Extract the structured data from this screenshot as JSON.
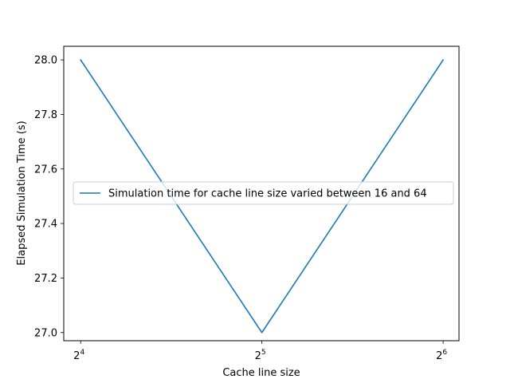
{
  "chart_data": {
    "type": "line",
    "xscale": "log2",
    "x": [
      16,
      32,
      64
    ],
    "x_tick_labels": [
      {
        "base": "2",
        "exp": "4",
        "value": 16
      },
      {
        "base": "2",
        "exp": "5",
        "value": 32
      },
      {
        "base": "2",
        "exp": "6",
        "value": 64
      }
    ],
    "xlim": [
      15,
      68
    ],
    "ylim": [
      26.97,
      28.05
    ],
    "y_ticks": [
      27.0,
      27.2,
      27.4,
      27.6,
      27.8,
      28.0
    ],
    "y_tick_labels": [
      "27.0",
      "27.2",
      "27.4",
      "27.6",
      "27.8",
      "28.0"
    ],
    "xlabel": "Cache line size",
    "ylabel": "Elapsed Simulation Time (s)",
    "grid": false,
    "legend_position": "center-left",
    "series": [
      {
        "name": "Simulation time for cache line size varied between 16 and 64",
        "color": "#1f77b4",
        "values": [
          28.0,
          27.0,
          28.0
        ]
      }
    ]
  }
}
